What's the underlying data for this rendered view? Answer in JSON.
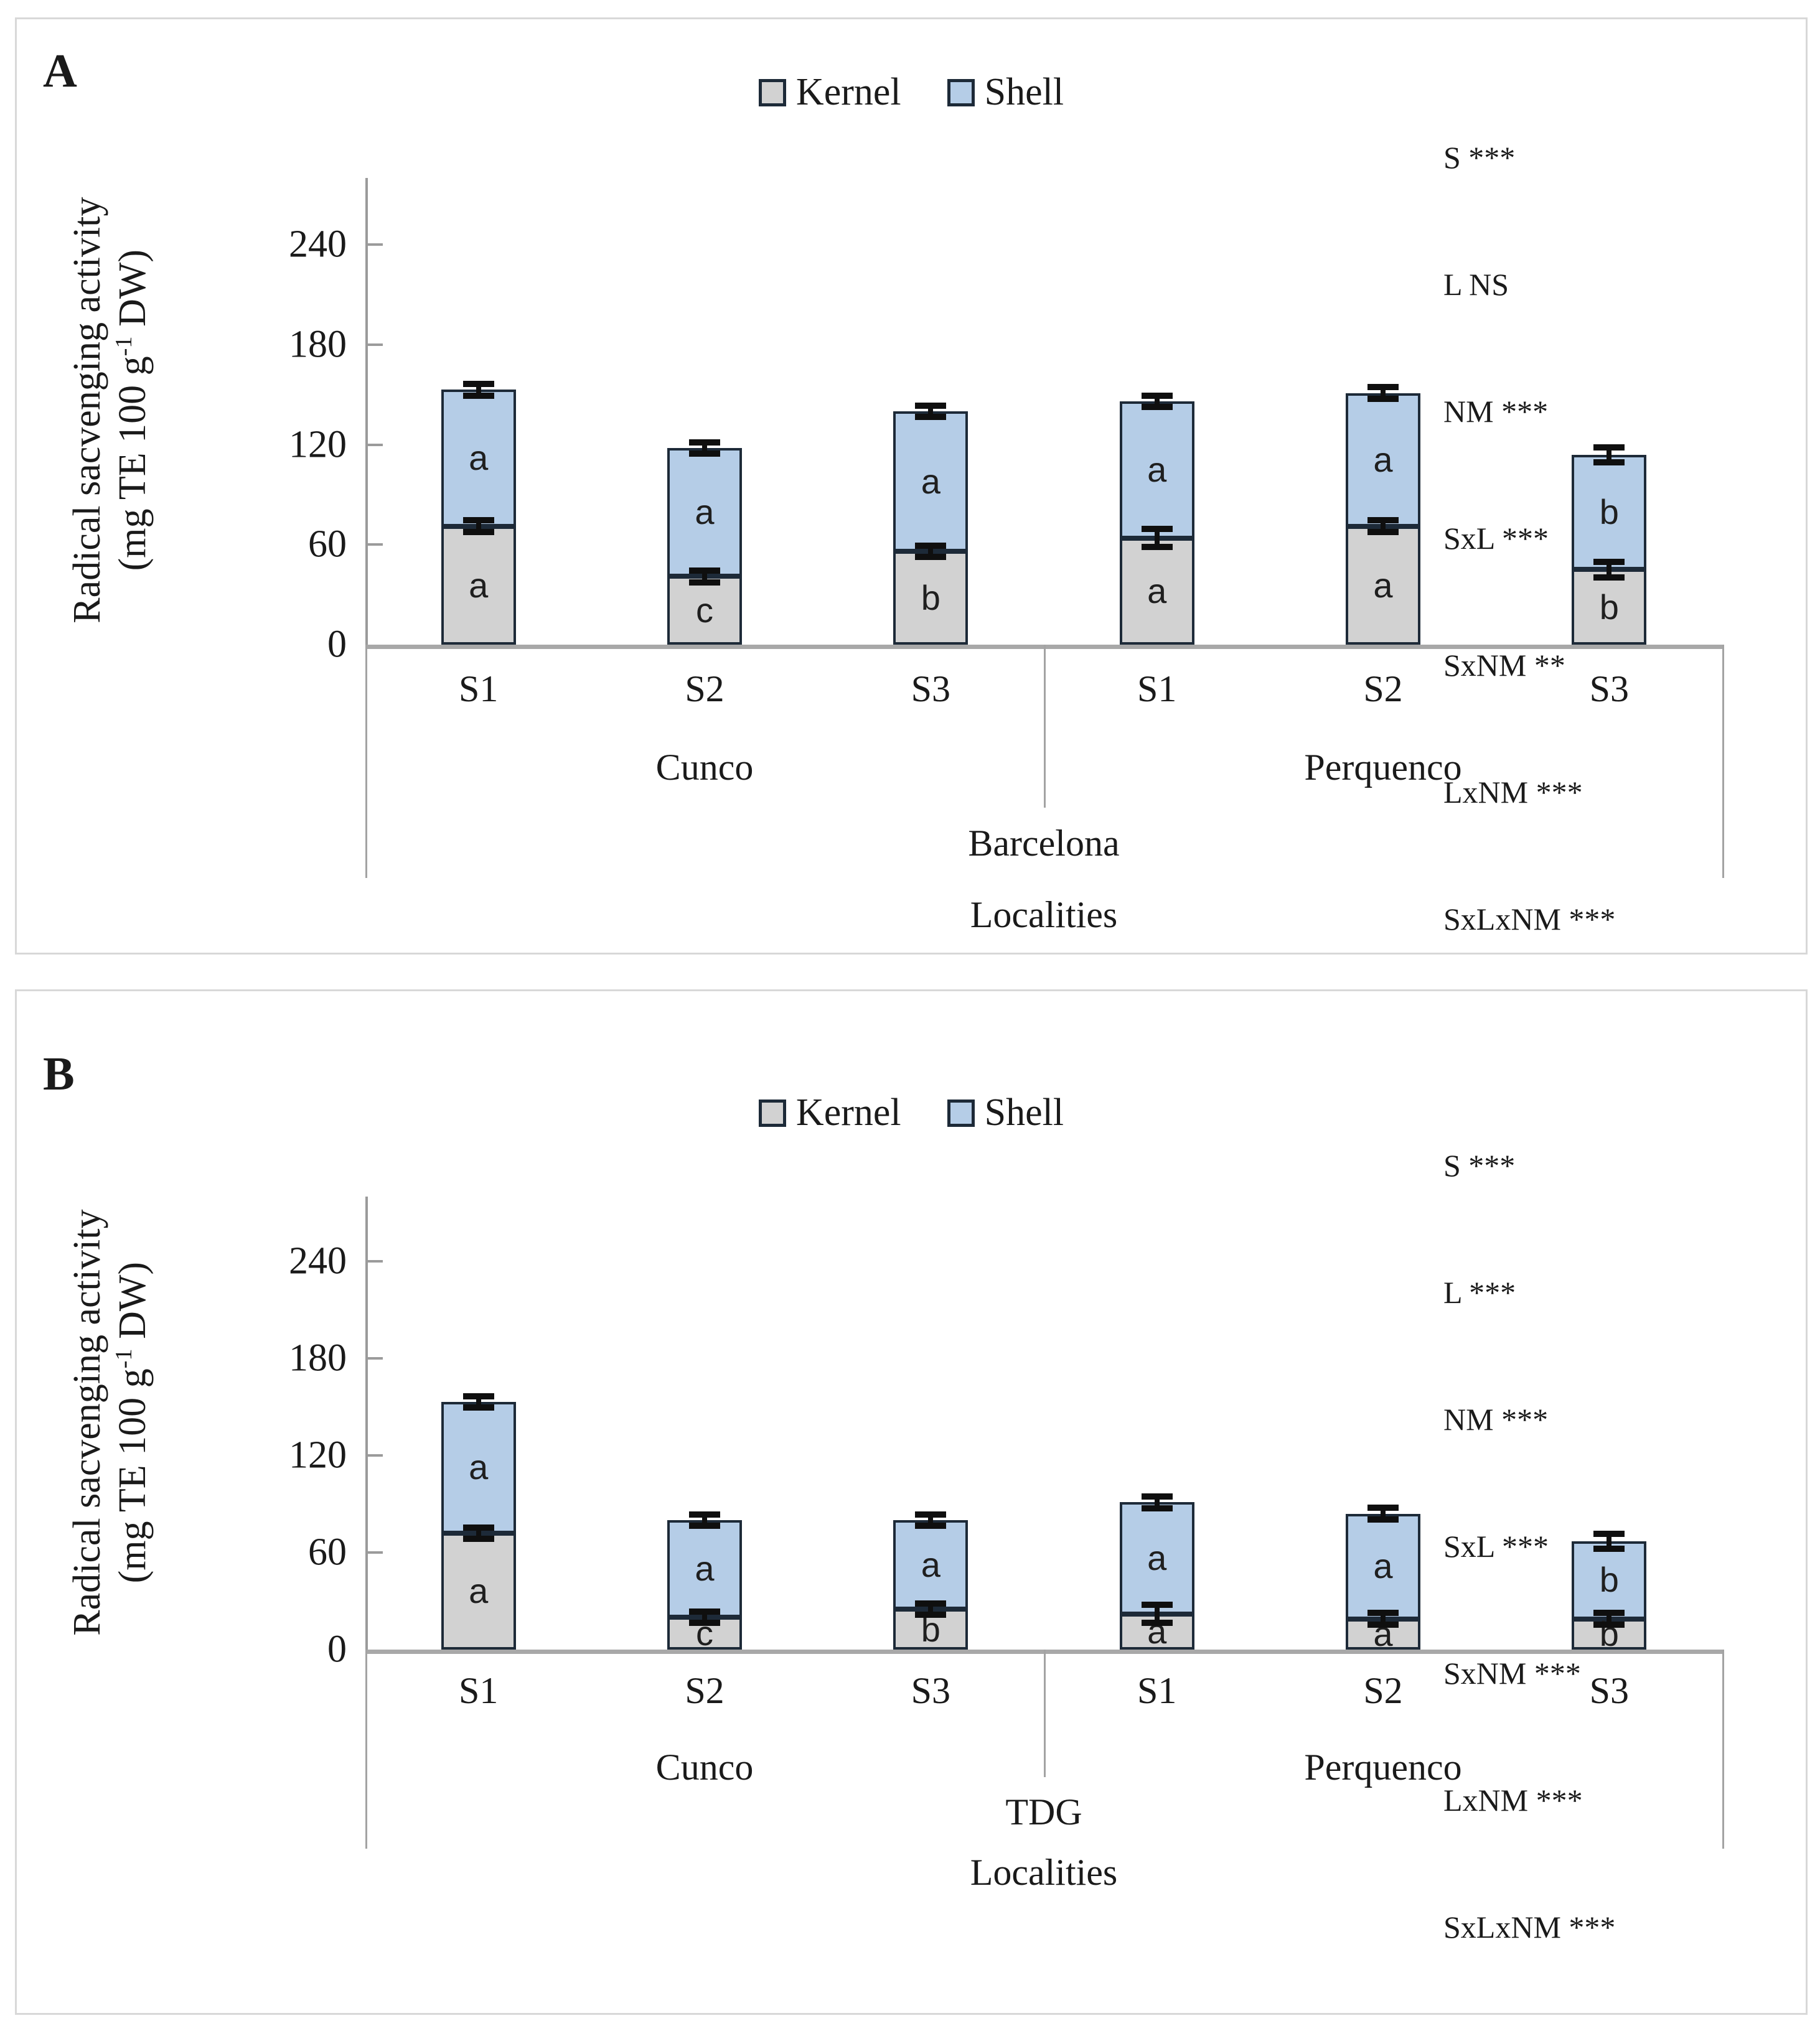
{
  "panels": [
    {
      "label": "A",
      "legend": [
        {
          "label": "Kernel",
          "color": "#d2d2d2"
        },
        {
          "label": "Shell",
          "color": "#b5cde7"
        }
      ],
      "stats_lines": [
        "S ***",
        "L NS",
        "NM ***",
        "SxL ***",
        "SxNM **",
        "LxNM ***",
        "SxLxNM ***"
      ],
      "y_axis": {
        "title_line1": "Radical sacvenging activity",
        "unit_prefix": "(mg TE 100 g",
        "unit_sup": "-1",
        "unit_suffix": " DW)"
      },
      "chart_data": {
        "type": "bar",
        "stacked": true,
        "series_names": [
          "Kernel",
          "Shell"
        ],
        "ylabel": "Radical sacvenging activity (mg TE 100 g-1 DW)",
        "xlabel": "Localities",
        "region": "Barcelona",
        "yticks": [
          0,
          60,
          120,
          180,
          240
        ],
        "ylim": [
          0,
          280
        ],
        "grid": false,
        "legend_position": "top-center",
        "colors": {
          "kernel": "#d2d2d2",
          "shell": "#b5cde7",
          "outline": "#1d2a38"
        },
        "groups": [
          {
            "locality": "Cunco",
            "bars": [
              {
                "season": "S1",
                "kernel": 71,
                "shell": 82,
                "total": 153,
                "kernel_letter": "a",
                "shell_letter": "a",
                "kernel_se": 2,
                "total_se": 2
              },
              {
                "season": "S2",
                "kernel": 41,
                "shell": 77,
                "total": 118,
                "kernel_letter": "c",
                "shell_letter": "a",
                "kernel_se": 2,
                "total_se": 2
              },
              {
                "season": "S3",
                "kernel": 56,
                "shell": 84,
                "total": 140,
                "kernel_letter": "b",
                "shell_letter": "a",
                "kernel_se": 2,
                "total_se": 2
              }
            ]
          },
          {
            "locality": "Perquenco",
            "bars": [
              {
                "season": "S1",
                "kernel": 64,
                "shell": 82,
                "total": 146,
                "kernel_letter": "a",
                "shell_letter": "a",
                "kernel_se": 4,
                "total_se": 2
              },
              {
                "season": "S2",
                "kernel": 71,
                "shell": 80,
                "total": 151,
                "kernel_letter": "a",
                "shell_letter": "a",
                "kernel_se": 2,
                "total_se": 2
              },
              {
                "season": "S3",
                "kernel": 45,
                "shell": 69,
                "total": 114,
                "kernel_letter": "b",
                "shell_letter": "b",
                "kernel_se": 3,
                "total_se": 3
              }
            ]
          }
        ]
      }
    },
    {
      "label": "B",
      "legend": [
        {
          "label": "Kernel",
          "color": "#d2d2d2"
        },
        {
          "label": "Shell",
          "color": "#b5cde7"
        }
      ],
      "stats_lines": [
        "S ***",
        "L ***",
        "NM ***",
        "SxL ***",
        "SxNM ***",
        "LxNM ***",
        "SxLxNM ***"
      ],
      "y_axis": {
        "title_line1": "Radical sacvenging activity",
        "unit_prefix": "(mg TE 100 g",
        "unit_sup": "-1",
        "unit_suffix": " DW)"
      },
      "chart_data": {
        "type": "bar",
        "stacked": true,
        "series_names": [
          "Kernel",
          "Shell"
        ],
        "ylabel": "Radical sacvenging activity (mg TE 100 g-1 DW)",
        "xlabel": "Localities",
        "region": "TDG",
        "yticks": [
          0,
          60,
          120,
          180,
          240
        ],
        "ylim": [
          0,
          280
        ],
        "grid": false,
        "legend_position": "top-center",
        "colors": {
          "kernel": "#d2d2d2",
          "shell": "#b5cde7",
          "outline": "#1d2a38"
        },
        "groups": [
          {
            "locality": "Cunco",
            "bars": [
              {
                "season": "S1",
                "kernel": 72,
                "shell": 81,
                "total": 153,
                "kernel_letter": "a",
                "shell_letter": "a",
                "kernel_se": 2,
                "total_se": 2
              },
              {
                "season": "S2",
                "kernel": 20,
                "shell": 60,
                "total": 80,
                "kernel_letter": "c",
                "shell_letter": "a",
                "kernel_se": 2,
                "total_se": 2
              },
              {
                "season": "S3",
                "kernel": 25,
                "shell": 55,
                "total": 80,
                "kernel_letter": "b",
                "shell_letter": "a",
                "kernel_se": 2,
                "total_se": 2
              }
            ]
          },
          {
            "locality": "Perquenco",
            "bars": [
              {
                "season": "S1",
                "kernel": 22,
                "shell": 69,
                "total": 91,
                "kernel_letter": "a",
                "shell_letter": "a",
                "kernel_se": 4,
                "total_se": 2
              },
              {
                "season": "S2",
                "kernel": 19,
                "shell": 65,
                "total": 84,
                "kernel_letter": "a",
                "shell_letter": "a",
                "kernel_se": 2,
                "total_se": 2
              },
              {
                "season": "S3",
                "kernel": 19,
                "shell": 48,
                "total": 67,
                "kernel_letter": "b",
                "shell_letter": "b",
                "kernel_se": 2,
                "total_se": 3
              }
            ]
          }
        ]
      }
    }
  ]
}
